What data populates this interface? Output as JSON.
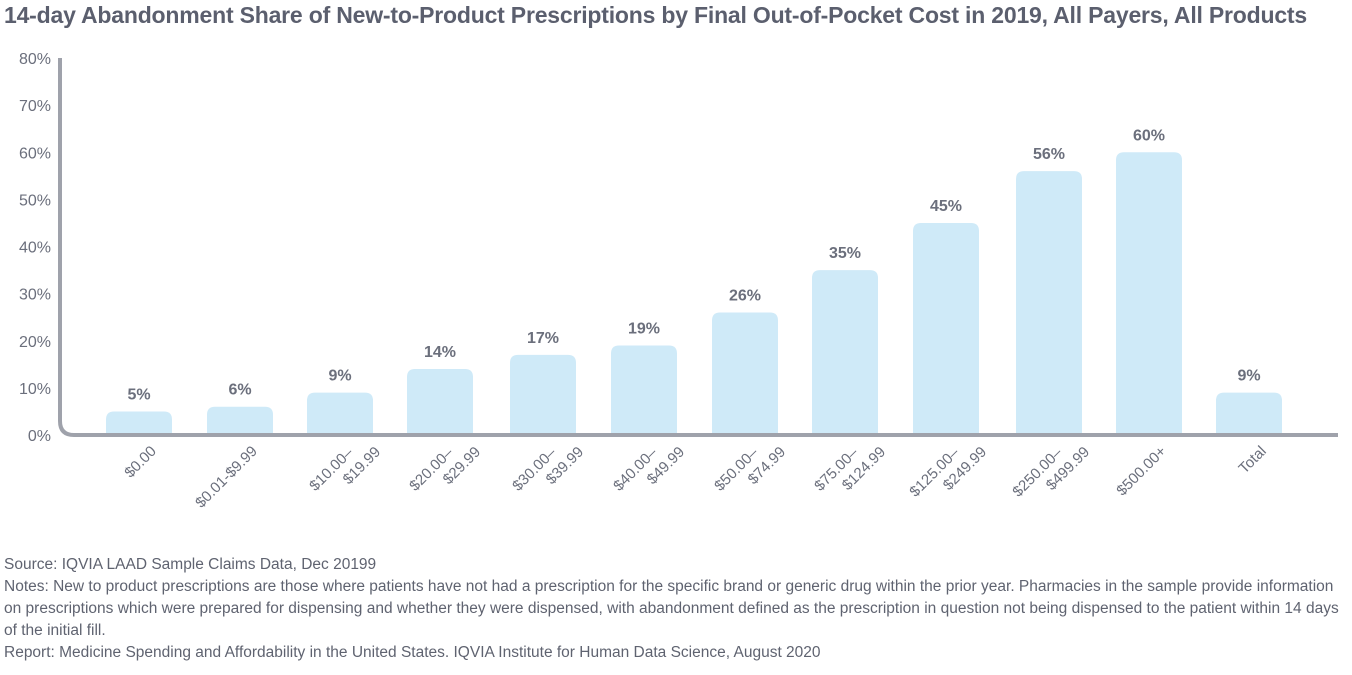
{
  "chart_data": {
    "type": "bar",
    "title": "14-day Abandonment Share of New-to-Product Prescriptions by Final Out-of-Pocket Cost in 2019, All Payers, All Products",
    "categories": [
      [
        "$0.00"
      ],
      [
        "$0.01-$9.99"
      ],
      [
        "$10.00–",
        "$19.99"
      ],
      [
        "$20.00–",
        "$29.99"
      ],
      [
        "$30.00–",
        "$39.99"
      ],
      [
        "$40.00–",
        "$49.99"
      ],
      [
        "$50.00–",
        "$74.99"
      ],
      [
        "$75.00–",
        "$124.99"
      ],
      [
        "$125.00–",
        "$249.99"
      ],
      [
        "$250.00–",
        "$499.99"
      ],
      [
        "$500.00+"
      ],
      [
        "Total"
      ]
    ],
    "values": [
      5,
      6,
      9,
      14,
      17,
      19,
      26,
      35,
      45,
      56,
      60,
      9
    ],
    "value_labels": [
      "5%",
      "6%",
      "9%",
      "14%",
      "17%",
      "19%",
      "26%",
      "35%",
      "45%",
      "56%",
      "60%",
      "9%"
    ],
    "y_ticks": [
      0,
      10,
      20,
      30,
      40,
      50,
      60,
      70,
      80
    ],
    "y_tick_labels": [
      "0%",
      "10%",
      "20%",
      "30%",
      "40%",
      "50%",
      "60%",
      "70%",
      "80%"
    ],
    "ylim": [
      0,
      80
    ],
    "xlabel": "",
    "ylabel": "",
    "grid": false,
    "legend": "none",
    "colors": {
      "bar": "#cfeaf8",
      "axis": "#9fa2ab",
      "text": "#6b6f7c"
    }
  },
  "footer": {
    "source": "Source: IQVIA LAAD Sample Claims Data, Dec 20199",
    "notes": "Notes: New to product prescriptions are those where patients have not had a prescription for the specific brand or generic drug within the prior year. Pharmacies in the sample provide information on prescriptions which were prepared for dispensing and whether they were dispensed, with abandonment defined as the prescription in question not being dispensed to the patient within 14 days of the initial fill.",
    "report": "Report: Medicine Spending and Affordability in the United States. IQVIA Institute for Human Data Science, August 2020"
  }
}
